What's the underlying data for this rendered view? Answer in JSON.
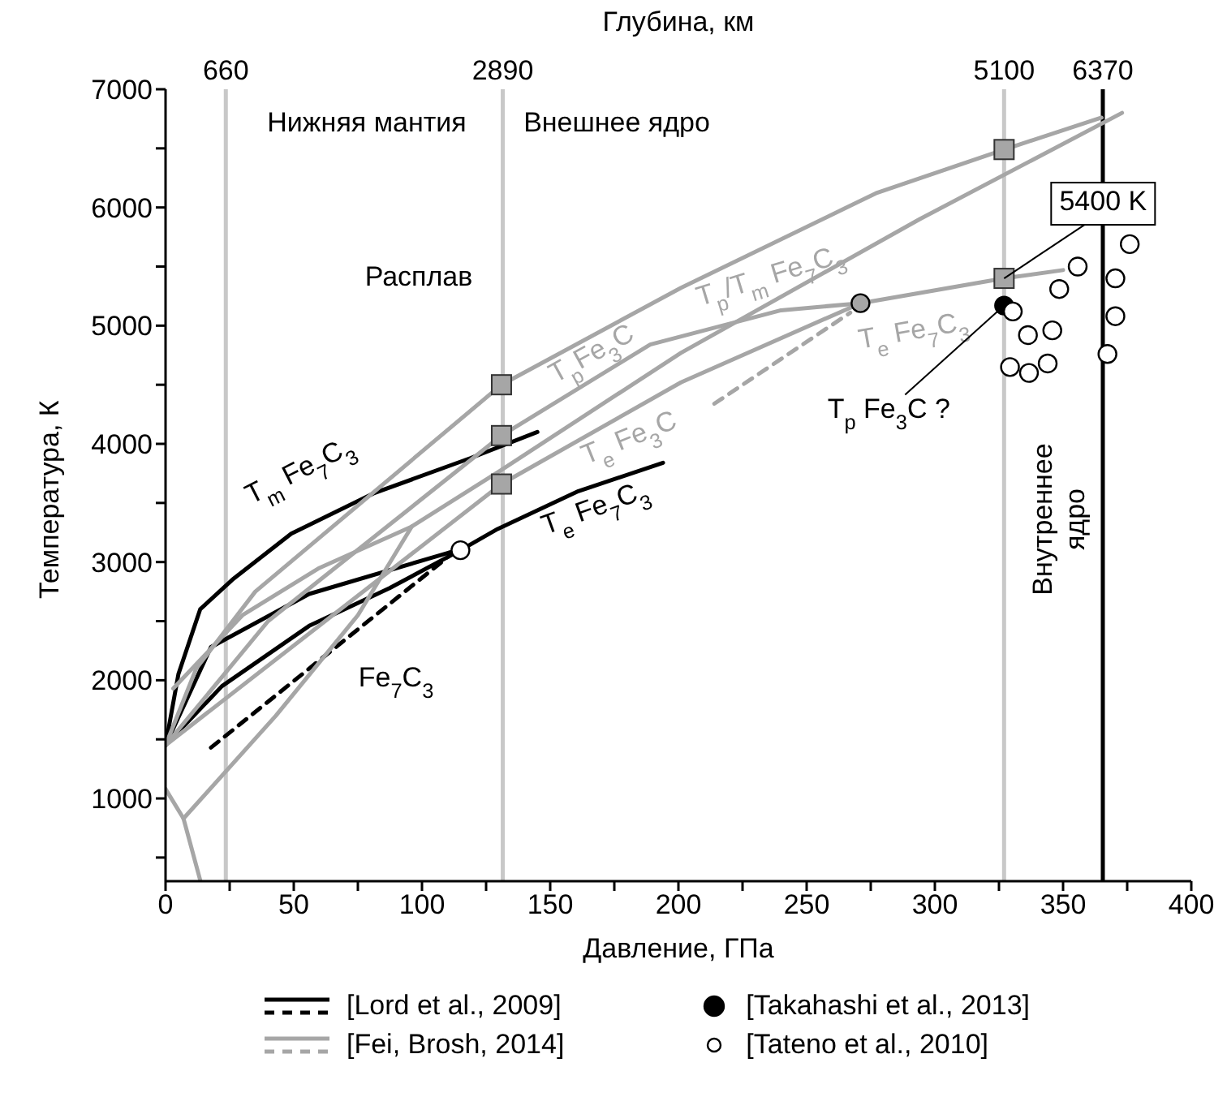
{
  "chart_data": {
    "type": "line",
    "xlabel": "Давление, ГПа",
    "ylabel": "Температура, К",
    "x2label": "Глубина, км",
    "xlim": [
      0,
      400
    ],
    "xticks": [
      0,
      {
        "value": 25,
        "label": null
      },
      50,
      {
        "value": 75,
        "label": null
      },
      100,
      {
        "value": 125,
        "label": null
      },
      150,
      {
        "value": 175,
        "label": null
      },
      200,
      {
        "value": 225,
        "label": null
      },
      250,
      {
        "value": 275,
        "label": null
      },
      300,
      {
        "value": 325,
        "label": null
      },
      350,
      {
        "value": 375,
        "label": null
      },
      400
    ],
    "ylim": [
      300,
      7000
    ],
    "yticks": [
      {
        "value": 500,
        "label": null
      },
      1000,
      {
        "value": 1500,
        "label": null
      },
      2000,
      {
        "value": 2500,
        "label": null
      },
      3000,
      {
        "value": 3500,
        "label": null
      },
      4000,
      {
        "value": 4500,
        "label": null
      },
      5000,
      {
        "value": 5500,
        "label": null
      },
      6000,
      {
        "value": 6500,
        "label": null
      },
      7000
    ],
    "grid": false,
    "legend": "bottom",
    "ref_lines": [
      {
        "axis": "x",
        "value": 23.5,
        "color": "#c8c8c8"
      },
      {
        "axis": "x",
        "value": 131.5,
        "color": "#c8c8c8"
      },
      {
        "axis": "x",
        "value": 327,
        "color": "#c8c8c8"
      },
      {
        "axis": "x",
        "value": 365.5,
        "color": "#000000"
      }
    ],
    "series": [
      {
        "name": "[Lord et al., 2009]",
        "color": "#000000",
        "line_style": "solid",
        "x": [
          0,
          5,
          13.5,
          26,
          49,
          81,
          119,
          145
        ],
        "values": [
          1450,
          2050,
          2600,
          2850,
          3240,
          3580,
          3880,
          4100
        ]
      },
      {
        "color": "#000000",
        "line_style": "solid",
        "x": [
          0,
          17.7,
          56,
          110.5,
          115
        ],
        "values": [
          1450,
          2280,
          2730,
          3080,
          3100
        ]
      },
      {
        "color": "#000000",
        "line_style": "solid",
        "x": [
          0,
          22,
          56,
          87.4,
          115
        ],
        "values": [
          1450,
          1950,
          2460,
          2780,
          3100
        ]
      },
      {
        "color": "#000000",
        "line_style": "solid",
        "x": [
          115,
          129.5,
          161,
          194
        ],
        "values": [
          3100,
          3280,
          3600,
          3840
        ]
      },
      {
        "color": "#000000",
        "line_style": "dashed",
        "x": [
          17.7,
          110.5
        ],
        "values": [
          1430,
          3050
        ]
      },
      {
        "name": "[Fei, Brosh, 2014]",
        "color": "#a6a6a6",
        "line_style": "solid",
        "x": [
          3,
          30,
          60,
          96,
          131,
          201,
          294,
          373
        ],
        "values": [
          1930,
          2550,
          2950,
          3300,
          3780,
          4770,
          5900,
          6800
        ]
      },
      {
        "color": "#a6a6a6",
        "line_style": "solid",
        "x": [
          0,
          7,
          13.5
        ],
        "values": [
          1080,
          830,
          310
        ]
      },
      {
        "color": "#a6a6a6",
        "line_style": "solid",
        "x": [
          7,
          43,
          75,
          96
        ],
        "values": [
          830,
          1700,
          2550,
          3300
        ]
      },
      {
        "color": "#a6a6a6",
        "line_style": "solid",
        "x": [
          0,
          12,
          35,
          131,
          201,
          277,
          327,
          365
        ],
        "values": [
          1450,
          2100,
          2750,
          4500,
          5320,
          6120,
          6490,
          6760
        ]
      },
      {
        "color": "#a6a6a6",
        "line_style": "solid",
        "x": [
          0,
          40,
          131,
          189,
          240,
          271
        ],
        "values": [
          1450,
          2500,
          4070,
          4840,
          5130,
          5190
        ]
      },
      {
        "color": "#a6a6a6",
        "line_style": "solid",
        "x": [
          0,
          131,
          201,
          271
        ],
        "values": [
          1450,
          3660,
          4520,
          5190
        ]
      },
      {
        "color": "#a6a6a6",
        "line_style": "solid",
        "x": [
          271,
          327,
          350
        ],
        "values": [
          5190,
          5400,
          5470
        ]
      },
      {
        "color": "#a6a6a6",
        "line_style": "dashed",
        "x": [
          214,
          267
        ],
        "values": [
          4340,
          5110
        ]
      },
      {
        "type": "scatter",
        "color": "#a6a6a6",
        "marker": "square",
        "x": [
          131,
          131,
          131,
          327,
          327
        ],
        "values": [
          4500,
          4070,
          3660,
          6490,
          5400
        ]
      },
      {
        "type": "scatter",
        "color": "#a6a6a6",
        "marker": "circle",
        "x": [
          271
        ],
        "values": [
          5190
        ]
      },
      {
        "type": "scatter",
        "color": "#ffffff",
        "marker": "circle",
        "x": [
          115
        ],
        "values": [
          3100
        ]
      },
      {
        "type": "scatter",
        "name": "[Takahashi et al., 2013]",
        "color": "#000000",
        "marker": "circle",
        "x": [
          327
        ],
        "values": [
          5170
        ]
      },
      {
        "type": "scatter",
        "name": "[Tateno et al., 2010]",
        "color": "#ffffff",
        "marker": "circle",
        "x": [
          330.4,
          355.7,
          348.5,
          376,
          370.4,
          370.4,
          367.3,
          336.3,
          345.8,
          329.3,
          336.7,
          344
        ],
        "values": [
          5120,
          5500,
          5310,
          5690,
          5400,
          5080,
          4760,
          4920,
          4960,
          4650,
          4600,
          4680
        ]
      }
    ],
    "annotations": [
      "Нижняя мантия",
      "Внешнее ядро",
      "Расплав",
      "Внутреннее ядро",
      "T$_{m}$ Fe$_{7}$C$_{3}$",
      "Fe$_{7}$C$_{3}$",
      "T$_{e}$ Fe$_{7}$C$_{3}$",
      "T$_{p}$/T$_{m}$ Fe$_{7}$C$_{3}$",
      "T$_{p}$Fe$_{3}$C",
      "T$_{e}$ Fe$_{3}$C",
      "T$_{e}$ Fe$_{7}$C$_{3}$",
      {
        "text": "T$_{p}$ Fe$_{3}$C ?",
        "x": 327,
        "y": 5170
      },
      {
        "text": "5400 K",
        "x": 327,
        "y": 5400
      },
      "660",
      "2890",
      "5100",
      "6370"
    ]
  }
}
